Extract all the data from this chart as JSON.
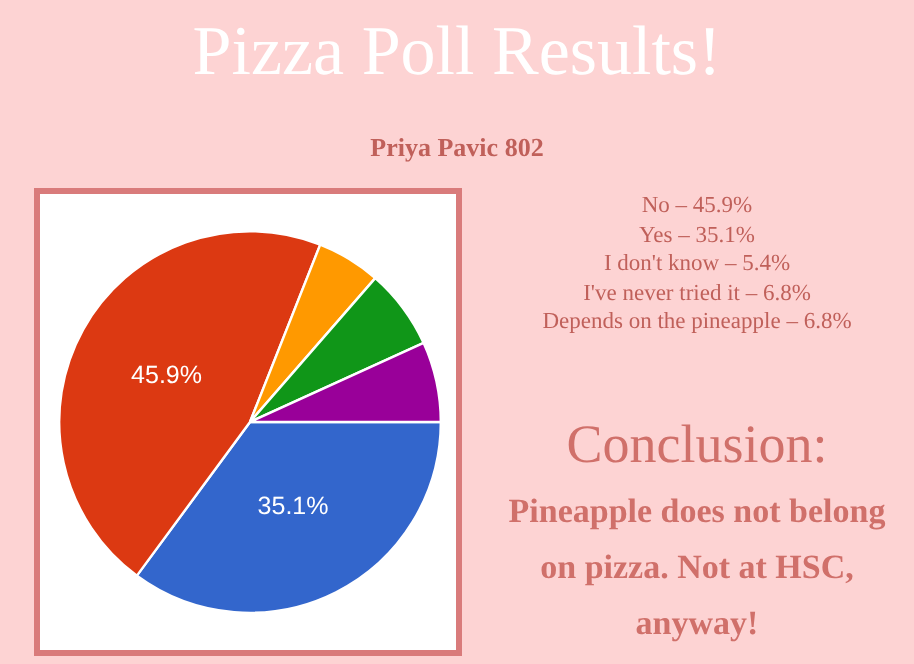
{
  "chart_data": {
    "type": "pie",
    "title": "Pizza Poll Results!",
    "subtitle": "Priya Pavic 802",
    "categories": [
      null,
      null,
      null,
      null,
      null
    ],
    "values": [
      35.1,
      45.9,
      5.4,
      6.8,
      6.8
    ],
    "colors": [
      "#3366cc",
      "#dc3912",
      "#ff9900",
      "#109618",
      "#990099"
    ],
    "value_labels": [
      "35.1%",
      "45.9%",
      null,
      null,
      null
    ],
    "annotations": [
      "No – 45.9%",
      "Yes – 35.1%",
      "I don't know – 5.4%",
      "I've never tried it – 6.8%",
      "Depends on the pineapple – 6.8%",
      "Conclusion:",
      "Pineapple does not belong on pizza. Not at HSC, anyway!"
    ]
  }
}
